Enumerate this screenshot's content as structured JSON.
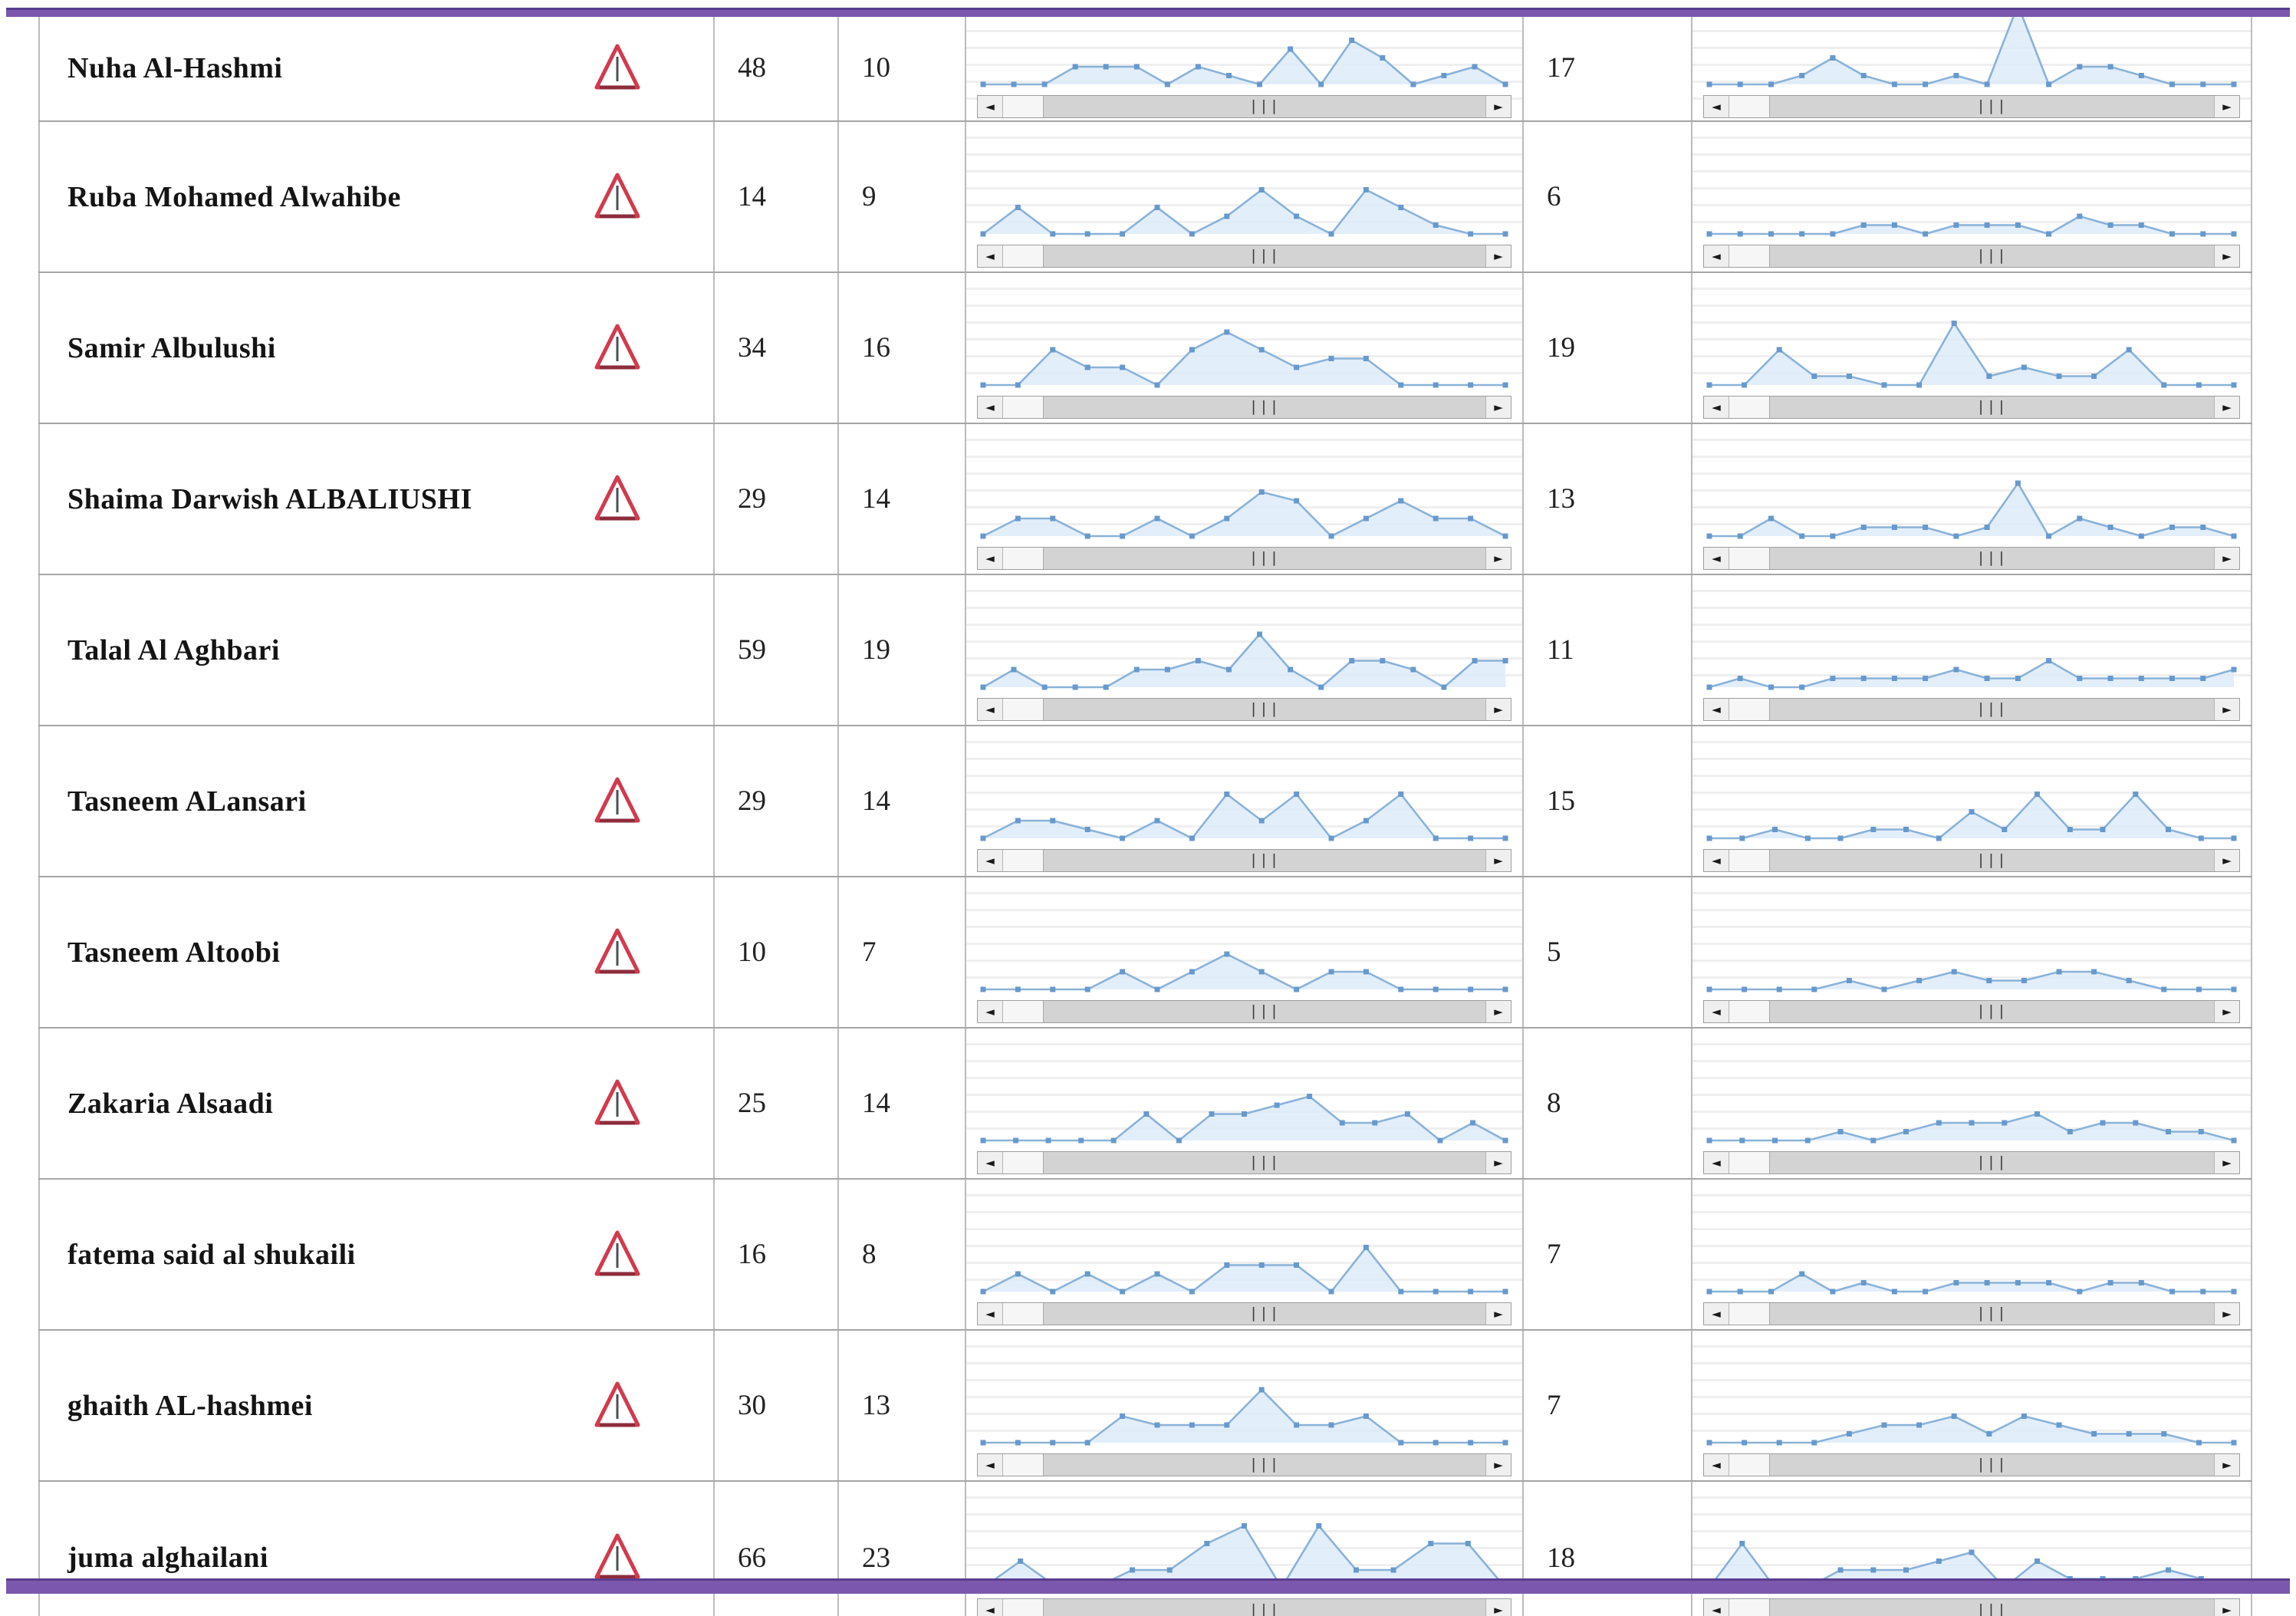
{
  "page": {
    "accent_color": "#7b58ae",
    "accent_edge_color": "#5a3d8f",
    "background": "#ffffff",
    "spark_line_color": "#8ab2d8",
    "spark_fill_color": "#dceafa",
    "spark_dot_color": "#6899cc",
    "warning_color": "#d23a4e"
  },
  "scrollbar": {
    "left_arrow": "◄",
    "right_arrow": "►",
    "grip": "|||"
  },
  "icons": {
    "warning": "warning-triangle"
  },
  "table": {
    "rows": [
      {
        "name": "Nuha Al-Hashmi",
        "warning": true,
        "count1": "48",
        "count2": "10",
        "count3": "17",
        "spark1": [
          0,
          0,
          0,
          2,
          2,
          2,
          0,
          2,
          1,
          0,
          4,
          0,
          5,
          3,
          0,
          1,
          2,
          0
        ],
        "spark2": [
          0,
          0,
          0,
          1,
          3,
          1,
          0,
          0,
          1,
          0,
          9,
          0,
          2,
          2,
          1,
          0,
          0,
          0
        ]
      },
      {
        "name": "Ruba Mohamed Alwahibe",
        "warning": true,
        "count1": "14",
        "count2": "9",
        "count3": "6",
        "spark1": [
          0,
          3,
          0,
          0,
          0,
          3,
          0,
          2,
          5,
          2,
          0,
          5,
          3,
          1,
          0,
          0
        ],
        "spark2": [
          0,
          0,
          0,
          0,
          0,
          1,
          1,
          0,
          1,
          1,
          1,
          0,
          2,
          1,
          1,
          0,
          0,
          0
        ]
      },
      {
        "name": "Samir Albulushi",
        "warning": true,
        "count1": "34",
        "count2": "16",
        "count3": "19",
        "spark1": [
          0,
          0,
          4,
          2,
          2,
          0,
          4,
          6,
          4,
          2,
          3,
          3,
          0,
          0,
          0,
          0
        ],
        "spark2": [
          0,
          0,
          4,
          1,
          1,
          0,
          0,
          7,
          1,
          2,
          1,
          1,
          4,
          0,
          0,
          0
        ]
      },
      {
        "name": "Shaima Darwish ALBALIUSHI",
        "warning": true,
        "count1": "29",
        "count2": "14",
        "count3": "13",
        "spark1": [
          0,
          2,
          2,
          0,
          0,
          2,
          0,
          2,
          5,
          4,
          0,
          2,
          4,
          2,
          2,
          0
        ],
        "spark2": [
          0,
          0,
          2,
          0,
          0,
          1,
          1,
          1,
          0,
          1,
          6,
          0,
          2,
          1,
          0,
          1,
          1,
          0
        ]
      },
      {
        "name": "Talal Al Aghbari",
        "warning": false,
        "count1": "59",
        "count2": "19",
        "count3": "11",
        "spark1": [
          0,
          2,
          0,
          0,
          0,
          2,
          2,
          3,
          2,
          6,
          2,
          0,
          3,
          3,
          2,
          0,
          3,
          3
        ],
        "spark2": [
          0,
          1,
          0,
          0,
          1,
          1,
          1,
          1,
          2,
          1,
          1,
          3,
          1,
          1,
          1,
          1,
          1,
          2
        ]
      },
      {
        "name": "Tasneem ALansari",
        "warning": true,
        "count1": "29",
        "count2": "14",
        "count3": "15",
        "spark1": [
          0,
          2,
          2,
          1,
          0,
          2,
          0,
          5,
          2,
          5,
          0,
          2,
          5,
          0,
          0,
          0
        ],
        "spark2": [
          0,
          0,
          1,
          0,
          0,
          1,
          1,
          0,
          3,
          1,
          5,
          1,
          1,
          5,
          1,
          0,
          0
        ]
      },
      {
        "name": "Tasneem Altoobi",
        "warning": true,
        "count1": "10",
        "count2": "7",
        "count3": "5",
        "spark1": [
          0,
          0,
          0,
          0,
          2,
          0,
          2,
          4,
          2,
          0,
          2,
          2,
          0,
          0,
          0,
          0
        ],
        "spark2": [
          0,
          0,
          0,
          0,
          1,
          0,
          1,
          2,
          1,
          1,
          2,
          2,
          1,
          0,
          0,
          0
        ]
      },
      {
        "name": "Zakaria Alsaadi",
        "warning": true,
        "count1": "25",
        "count2": "14",
        "count3": "8",
        "spark1": [
          0,
          0,
          0,
          0,
          0,
          3,
          0,
          3,
          3,
          4,
          5,
          2,
          2,
          3,
          0,
          2,
          0
        ],
        "spark2": [
          0,
          0,
          0,
          0,
          1,
          0,
          1,
          2,
          2,
          2,
          3,
          1,
          2,
          2,
          1,
          1,
          0
        ]
      },
      {
        "name": "fatema said al shukaili",
        "warning": true,
        "count1": "16",
        "count2": "8",
        "count3": "7",
        "spark1": [
          0,
          2,
          0,
          2,
          0,
          2,
          0,
          3,
          3,
          3,
          0,
          5,
          0,
          0,
          0,
          0
        ],
        "spark2": [
          0,
          0,
          0,
          2,
          0,
          1,
          0,
          0,
          1,
          1,
          1,
          1,
          0,
          1,
          1,
          0,
          0,
          0
        ]
      },
      {
        "name": "ghaith AL-hashmei",
        "warning": true,
        "count1": "30",
        "count2": "13",
        "count3": "7",
        "spark1": [
          0,
          0,
          0,
          0,
          3,
          2,
          2,
          2,
          6,
          2,
          2,
          3,
          0,
          0,
          0,
          0
        ],
        "spark2": [
          0,
          0,
          0,
          0,
          1,
          2,
          2,
          3,
          1,
          3,
          2,
          1,
          1,
          1,
          0,
          0
        ]
      },
      {
        "name": "juma alghailani",
        "warning": true,
        "count1": "66",
        "count2": "23",
        "count3": "18",
        "spark1": [
          0,
          3,
          0,
          0,
          2,
          2,
          5,
          7,
          0,
          7,
          2,
          2,
          5,
          5,
          0
        ],
        "spark2": [
          0,
          5,
          0,
          0,
          2,
          2,
          2,
          3,
          4,
          0,
          3,
          1,
          1,
          1,
          2,
          1,
          0
        ]
      }
    ]
  }
}
